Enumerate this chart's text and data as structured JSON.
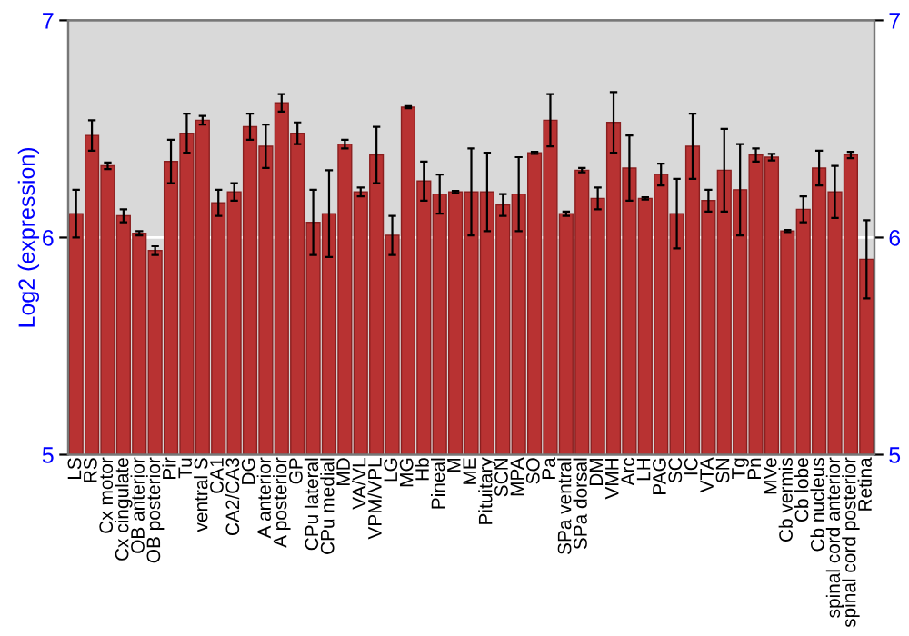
{
  "chart_data": {
    "type": "bar",
    "ylabel": "Log2 (expression)",
    "categories": [
      "LS",
      "RS",
      "Cx motor",
      "Cx cingulate",
      "OB anterior",
      "OB posterior",
      "Pir",
      "Tu",
      "ventral S",
      "CA1",
      "CA2/CA3",
      "DG",
      "A anterior",
      "A posterior",
      "GP",
      "CPu lateral",
      "CPu medial",
      "MD",
      "VA/VL",
      "VPM/VPL",
      "LG",
      "MG",
      "Hb",
      "Pineal",
      "M",
      "ME",
      "Pituitary",
      "SCN",
      "MPA",
      "SO",
      "Pa",
      "SPa ventral",
      "SPa dorsal",
      "DM",
      "VMH",
      "Arc",
      "LH",
      "PAG",
      "SC",
      "IC",
      "VTA",
      "SN",
      "Tg",
      "Pn",
      "MVe",
      "Cb vermis",
      "Cb lobe",
      "Cb nucleus",
      "spinal cord anterior",
      "spinal cord posterior",
      "Retina"
    ],
    "values": [
      6.11,
      6.47,
      6.33,
      6.1,
      6.02,
      5.94,
      6.35,
      6.48,
      6.54,
      6.16,
      6.21,
      6.51,
      6.42,
      6.62,
      6.48,
      6.07,
      6.11,
      6.43,
      6.21,
      6.38,
      6.01,
      6.6,
      6.26,
      6.2,
      6.21,
      6.21,
      6.21,
      6.15,
      6.2,
      6.39,
      6.54,
      6.11,
      6.31,
      6.18,
      6.53,
      6.32,
      6.18,
      6.29,
      6.11,
      6.42,
      6.17,
      6.31,
      6.22,
      6.38,
      6.37,
      6.03,
      6.13,
      6.32,
      6.21,
      6.38,
      5.9
    ],
    "errors": [
      0.11,
      0.07,
      0.015,
      0.03,
      0.01,
      0.02,
      0.1,
      0.09,
      0.02,
      0.06,
      0.04,
      0.06,
      0.1,
      0.04,
      0.05,
      0.15,
      0.2,
      0.02,
      0.02,
      0.13,
      0.09,
      0.005,
      0.09,
      0.09,
      0.005,
      0.2,
      0.18,
      0.05,
      0.17,
      0.005,
      0.12,
      0.01,
      0.01,
      0.05,
      0.14,
      0.15,
      0.005,
      0.05,
      0.16,
      0.15,
      0.05,
      0.19,
      0.21,
      0.03,
      0.015,
      0.005,
      0.06,
      0.08,
      0.12,
      0.015,
      0.18
    ],
    "color": "#b83232",
    "ylim": [
      5,
      7
    ],
    "yticks": [
      5,
      6,
      7
    ],
    "y2lim": [
      5,
      7
    ],
    "y2ticks": [
      5,
      6,
      7
    ],
    "grid": "y"
  }
}
